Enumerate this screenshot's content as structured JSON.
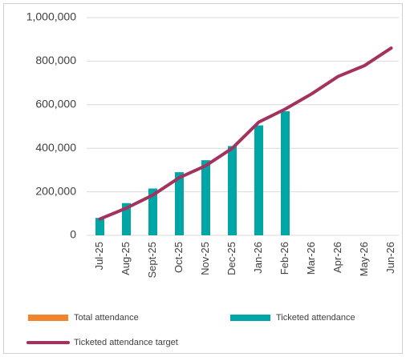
{
  "chart_data": {
    "type": "bar",
    "categories": [
      "Jul-25",
      "Aug-25",
      "Sept-25",
      "Oct-25",
      "Nov-25",
      "Dec-25",
      "Jan-26",
      "Feb-26",
      "Mar-26",
      "Apr-26",
      "May-26",
      "Jun-26"
    ],
    "series": [
      {
        "name": "Total attendance",
        "type": "bar",
        "color": "#f0852d",
        "values": [
          null,
          null,
          null,
          null,
          null,
          null,
          null,
          null,
          null,
          null,
          null,
          null
        ]
      },
      {
        "name": "Ticketed attendance",
        "type": "bar",
        "color": "#00a5a5",
        "values": [
          80000,
          148000,
          215000,
          290000,
          345000,
          410000,
          505000,
          570000,
          null,
          null,
          null,
          null
        ]
      },
      {
        "name": "Ticketed attendance target",
        "type": "line",
        "color": "#a3325e",
        "values": [
          75000,
          125000,
          185000,
          265000,
          320000,
          400000,
          520000,
          580000,
          650000,
          730000,
          780000,
          860000
        ]
      }
    ],
    "ylim": [
      0,
      1000000
    ],
    "yticks": [
      0,
      {
        "value": 200000,
        "label": "200,000"
      },
      {
        "value": 400000,
        "label": "400,000"
      },
      {
        "value": 600000,
        "label": "600,000"
      },
      {
        "value": 800000,
        "label": "800,000"
      },
      {
        "value": 1000000,
        "label": "1,000,000"
      }
    ],
    "grid": true
  }
}
